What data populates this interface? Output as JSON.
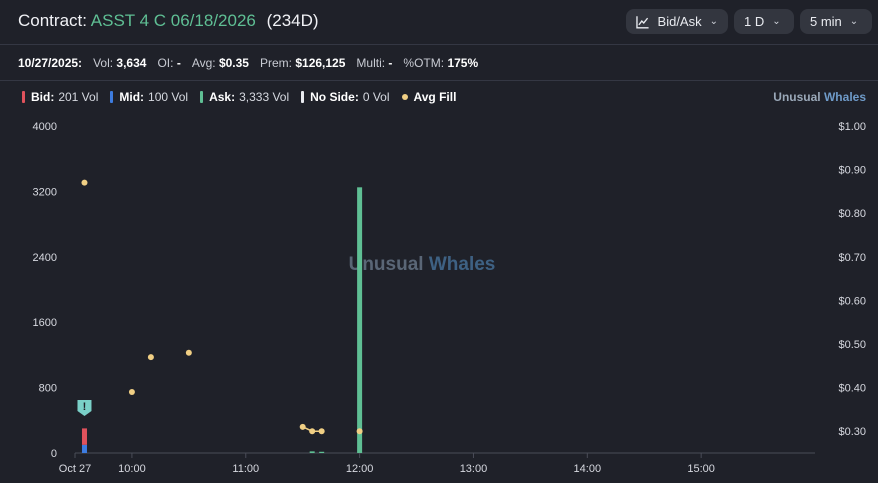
{
  "header": {
    "contract_label": "Contract:",
    "symbol": "ASST 4 C 06/18/2026",
    "dte": "(234D)",
    "controls": [
      {
        "label": "Bid/Ask",
        "icon": "line-chart-icon"
      },
      {
        "label": "1 D"
      },
      {
        "label": "5 min"
      }
    ]
  },
  "stats": {
    "date": "10/27/2025:",
    "vol_label": "Vol:",
    "vol": "3,634",
    "oi_label": "OI:",
    "oi": "-",
    "avg_label": "Avg:",
    "avg": "$0.35",
    "prem_label": "Prem:",
    "prem": "$126,125",
    "multi_label": "Multi:",
    "multi": "-",
    "otm_label": "%OTM:",
    "otm": "175%"
  },
  "legend": {
    "bid": {
      "label": "Bid:",
      "value": "201 Vol",
      "color": "#e0525c"
    },
    "mid": {
      "label": "Mid:",
      "value": "100 Vol",
      "color": "#3d7ce0"
    },
    "ask": {
      "label": "Ask:",
      "value": "3,333 Vol",
      "color": "#5fbf94"
    },
    "noside": {
      "label": "No Side:",
      "value": "0 Vol",
      "color": "#e9ebf0"
    },
    "avgfill": {
      "label": "Avg Fill",
      "color": "#f0cf84"
    }
  },
  "brand": {
    "part1": "Unusual",
    "part2": "Whales"
  },
  "watermark": {
    "part1": "Unusual",
    "part2": "Whales"
  },
  "chart_data": {
    "type": "bar",
    "x_tick_labels": [
      "Oct 27",
      "10:00",
      "11:00",
      "12:00",
      "13:00",
      "14:00",
      "15:00"
    ],
    "x_tick_minutes": [
      570,
      600,
      660,
      720,
      780,
      840,
      900
    ],
    "x_range_minutes": [
      570,
      960
    ],
    "y_left_ticks": [
      "0",
      "800",
      "1600",
      "2400",
      "3200",
      "4000"
    ],
    "y_left_range": [
      0,
      4000
    ],
    "y_right_ticks": [
      "$0.30",
      "$0.40",
      "$0.50",
      "$0.60",
      "$0.70",
      "$0.80",
      "$0.90",
      "$1.00"
    ],
    "y_right_range": [
      0.25,
      1.0
    ],
    "volume_bars": [
      {
        "time": "09:35",
        "bid": 201,
        "mid": 100,
        "ask": 0
      },
      {
        "time": "11:35",
        "bid": 0,
        "mid": 0,
        "ask": 20
      },
      {
        "time": "11:40",
        "bid": 0,
        "mid": 0,
        "ask": 15
      },
      {
        "time": "12:00",
        "bid": 0,
        "mid": 0,
        "ask": 3250
      }
    ],
    "avg_fill_points": [
      {
        "time": "09:35",
        "price": 0.87
      },
      {
        "time": "10:00",
        "price": 0.39
      },
      {
        "time": "10:10",
        "price": 0.47
      },
      {
        "time": "10:30",
        "price": 0.48
      },
      {
        "time": "11:30",
        "price": 0.31
      },
      {
        "time": "11:35",
        "price": 0.3
      },
      {
        "time": "11:40",
        "price": 0.3
      },
      {
        "time": "12:00",
        "price": 0.3
      }
    ],
    "avg_fill_connected": [
      [
        4,
        5,
        6
      ]
    ],
    "alert_marker": {
      "time": "09:35",
      "symbol": "!"
    }
  }
}
